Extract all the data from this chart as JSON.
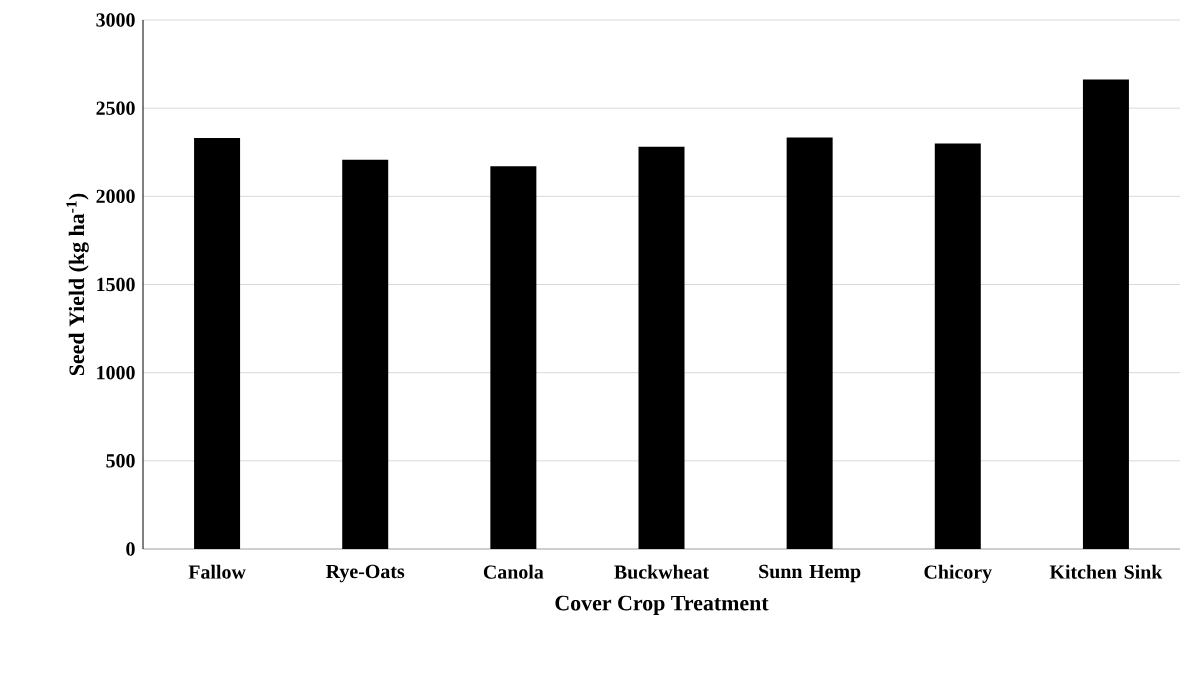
{
  "chart_data": {
    "type": "bar",
    "xlabel": "Cover Crop Treatment",
    "ylabel": "Seed Yield (kg ha$^{-1}$)",
    "categories": [
      "Fallow",
      "Rye-Oats",
      "Canola",
      "Buckwheat",
      "Sunn Hemp",
      "Chicory",
      "Kitchen Sink"
    ],
    "values": [
      2331,
      2208,
      2170,
      2281,
      2334,
      2300,
      2663
    ],
    "color": "#000000",
    "ylim": [
      0,
      3000
    ],
    "yticks": [
      0,
      500,
      1000,
      1500,
      2000,
      2500,
      3000
    ],
    "grid": "y"
  }
}
